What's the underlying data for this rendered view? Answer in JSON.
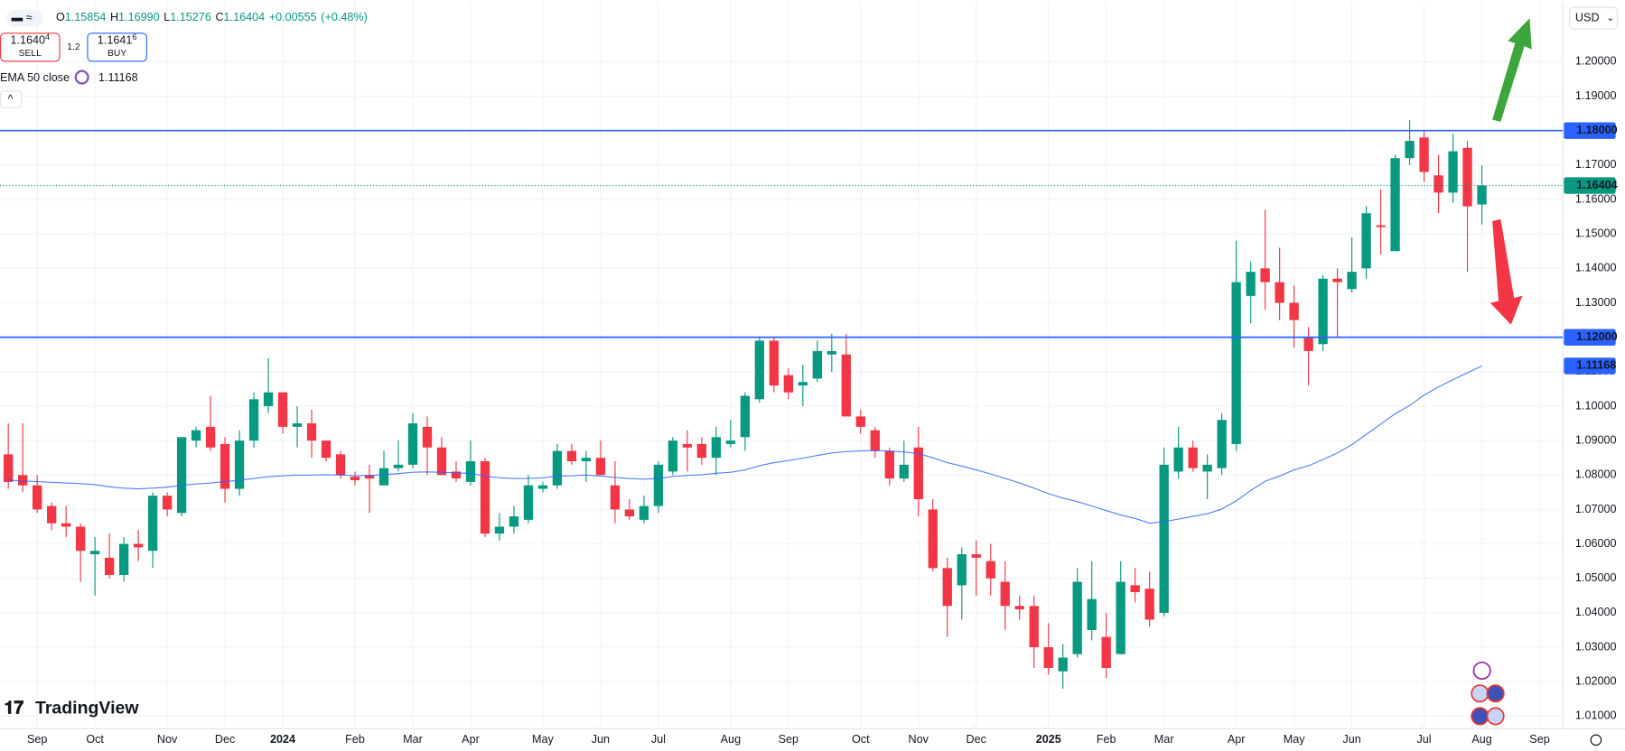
{
  "header": {
    "open_label": "O",
    "open": "1.15854",
    "high_label": "H",
    "high": "1.16990",
    "low_label": "L",
    "low": "1.15276",
    "close_label": "C",
    "close": "1.16404",
    "change": "+0.00555",
    "change_pct": "(+0.48%)",
    "sell_main": "1.1640",
    "sell_sup": "4",
    "sell": "SELL",
    "spread": "1.2",
    "buy_main": "1.1641",
    "buy_sup": "6",
    "buy": "BUY",
    "currency": "USD",
    "brand": "TradingView"
  },
  "chart_data": {
    "type": "candlestick",
    "categories": [
      null,
      null,
      "Sep",
      null,
      null,
      null,
      "Oct",
      null,
      null,
      null,
      null,
      "Nov",
      null,
      null,
      null,
      "Dec",
      null,
      null,
      null,
      "2024",
      null,
      null,
      null,
      null,
      "Feb",
      null,
      null,
      null,
      "Mar",
      null,
      null,
      null,
      "Apr",
      null,
      null,
      null,
      null,
      "May",
      null,
      null,
      null,
      "Jun",
      null,
      null,
      null,
      "Jul",
      null,
      null,
      null,
      null,
      "Aug",
      null,
      null,
      null,
      "Sep",
      null,
      null,
      null,
      null,
      "Oct",
      null,
      null,
      null,
      "Nov",
      null,
      null,
      null,
      "Dec",
      null,
      null,
      null,
      null,
      "2025",
      null,
      null,
      null,
      "Feb",
      null,
      null,
      null,
      "Mar",
      null,
      null,
      null,
      null,
      "Apr",
      null,
      null,
      null,
      "May",
      null,
      null,
      null,
      "Jun",
      null,
      null,
      null,
      null,
      "Jul",
      null,
      null,
      null,
      "Aug",
      null,
      null,
      null,
      "Sep"
    ],
    "open": [
      1.086,
      1.08,
      1.077,
      1.071,
      1.066,
      1.065,
      1.057,
      1.056,
      1.051,
      1.06,
      1.058,
      1.074,
      1.069,
      1.09,
      1.094,
      1.089,
      1.076,
      1.09,
      1.1,
      1.104,
      1.094,
      1.095,
      1.09,
      1.086,
      1.0795,
      1.08,
      1.077,
      1.082,
      1.083,
      1.094,
      1.088,
      1.081,
      1.078,
      1.084,
      1.063,
      1.065,
      1.067,
      1.076,
      1.077,
      1.087,
      1.084,
      1.085,
      1.077,
      1.07,
      1.067,
      1.071,
      1.081,
      1.089,
      1.089,
      1.085,
      1.089,
      1.091,
      1.102,
      1.119,
      1.109,
      1.106,
      1.108,
      1.115,
      1.115,
      1.097,
      1.093,
      1.087,
      1.079,
      1.088,
      1.07,
      1.053,
      1.048,
      1.057,
      1.055,
      1.049,
      1.042,
      1.042,
      1.03,
      1.023,
      1.028,
      1.035,
      1.033,
      1.028,
      1.048,
      1.047,
      1.04,
      1.081,
      1.088,
      1.081,
      1.082,
      1.089,
      1.132,
      1.14,
      1.136,
      1.13,
      1.12,
      1.118,
      1.137,
      1.134,
      1.14,
      1.1525,
      1.145,
      1.172,
      1.178,
      1.167,
      1.162,
      1.175,
      1.15854,
      null,
      null,
      null,
      null
    ],
    "high": [
      1.095,
      1.095,
      1.08,
      1.072,
      1.071,
      1.066,
      1.062,
      1.063,
      1.062,
      1.064,
      1.075,
      1.075,
      1.091,
      1.094,
      1.103,
      1.091,
      1.093,
      1.104,
      1.114,
      1.104,
      1.1,
      1.099,
      1.09,
      1.087,
      1.081,
      1.083,
      1.087,
      1.09,
      1.098,
      1.097,
      1.091,
      1.084,
      1.09,
      1.085,
      1.069,
      1.071,
      1.08,
      1.078,
      1.089,
      1.089,
      1.087,
      1.09,
      1.084,
      1.073,
      1.074,
      1.084,
      1.091,
      1.093,
      1.091,
      1.094,
      1.096,
      1.104,
      1.12,
      1.12,
      1.111,
      1.112,
      1.119,
      1.121,
      1.121,
      1.099,
      1.094,
      1.088,
      1.09,
      1.094,
      1.073,
      1.056,
      1.059,
      1.061,
      1.06,
      1.055,
      1.045,
      1.045,
      1.037,
      1.031,
      1.053,
      1.055,
      1.04,
      1.055,
      1.053,
      1.052,
      1.088,
      1.094,
      1.09,
      1.086,
      1.098,
      1.148,
      1.142,
      1.157,
      1.146,
      1.135,
      1.123,
      1.138,
      1.14,
      1.149,
      1.158,
      1.163,
      1.173,
      1.183,
      1.18,
      1.173,
      1.179,
      1.177,
      1.1699,
      null,
      null,
      null,
      null
    ],
    "low": [
      1.076,
      1.075,
      1.069,
      1.064,
      1.062,
      1.049,
      1.045,
      1.05,
      1.049,
      1.055,
      1.053,
      1.068,
      1.068,
      1.088,
      1.087,
      1.072,
      1.074,
      1.088,
      1.098,
      1.092,
      1.088,
      1.085,
      1.084,
      1.079,
      1.077,
      1.069,
      1.077,
      1.081,
      1.082,
      1.08,
      1.08,
      1.078,
      1.077,
      1.062,
      1.061,
      1.063,
      1.066,
      1.075,
      1.076,
      1.083,
      1.078,
      1.08,
      1.066,
      1.067,
      1.066,
      1.069,
      1.08,
      1.081,
      1.083,
      1.08,
      1.088,
      1.087,
      1.101,
      1.104,
      1.102,
      1.1,
      1.107,
      1.11,
      1.098,
      1.092,
      1.085,
      1.077,
      1.078,
      1.068,
      1.052,
      1.033,
      1.038,
      1.045,
      1.045,
      1.035,
      1.038,
      1.024,
      1.022,
      1.018,
      1.027,
      1.032,
      1.021,
      1.028,
      1.043,
      1.036,
      1.039,
      1.079,
      1.081,
      1.073,
      1.08,
      1.087,
      1.124,
      1.128,
      1.125,
      1.117,
      1.106,
      1.116,
      1.12,
      1.133,
      1.137,
      1.144,
      1.145,
      1.17,
      1.165,
      1.156,
      1.159,
      1.139,
      1.15276,
      null,
      null,
      null,
      null
    ],
    "close": [
      1.078,
      1.077,
      1.07,
      1.066,
      1.065,
      1.058,
      1.058,
      1.051,
      1.06,
      1.059,
      1.074,
      1.07,
      1.091,
      1.093,
      1.088,
      1.076,
      1.09,
      1.102,
      1.104,
      1.094,
      1.095,
      1.09,
      1.085,
      1.08,
      1.0785,
      1.079,
      1.082,
      1.083,
      1.095,
      1.088,
      1.08,
      1.079,
      1.084,
      1.063,
      1.065,
      1.068,
      1.077,
      1.077,
      1.087,
      1.084,
      1.085,
      1.08,
      1.07,
      1.068,
      1.071,
      1.083,
      1.09,
      1.088,
      1.085,
      1.091,
      1.09,
      1.103,
      1.119,
      1.106,
      1.104,
      1.107,
      1.116,
      1.116,
      1.097,
      1.094,
      1.087,
      1.079,
      1.083,
      1.073,
      1.053,
      1.042,
      1.057,
      1.056,
      1.05,
      1.042,
      1.041,
      1.03,
      1.024,
      1.027,
      1.049,
      1.044,
      1.024,
      1.049,
      1.046,
      1.038,
      1.083,
      1.088,
      1.082,
      1.083,
      1.096,
      1.136,
      1.139,
      1.136,
      1.13,
      1.125,
      1.116,
      1.137,
      1.136,
      1.139,
      1.156,
      1.152,
      1.172,
      1.177,
      1.168,
      1.162,
      1.174,
      1.158,
      1.16404,
      null,
      null,
      null,
      null
    ],
    "up_color": "#089981",
    "down_color": "#f23645",
    "ema": {
      "label": "EMA 50 close",
      "value_label": "1.11168",
      "color": "#2962ff",
      "values": [
        1.0785,
        1.0783,
        1.0781,
        1.0779,
        1.0777,
        1.0775,
        1.0772,
        1.0766,
        1.0762,
        1.076,
        1.0762,
        1.0765,
        1.077,
        1.0774,
        1.0777,
        1.0781,
        1.0785,
        1.079,
        1.0795,
        1.0798,
        1.08,
        1.08,
        1.0801,
        1.08,
        1.0798,
        1.0799,
        1.0801,
        1.0804,
        1.0808,
        1.0809,
        1.0808,
        1.0806,
        1.0805,
        1.0797,
        1.0792,
        1.079,
        1.079,
        1.0792,
        1.0797,
        1.0798,
        1.08,
        1.0797,
        1.0793,
        1.079,
        1.0788,
        1.079,
        1.0796,
        1.0799,
        1.0801,
        1.0805,
        1.0808,
        1.0815,
        1.0827,
        1.0836,
        1.0842,
        1.0849,
        1.0857,
        1.0864,
        1.0868,
        1.087,
        1.0871,
        1.087,
        1.0867,
        1.0862,
        1.085,
        1.0836,
        1.0826,
        1.0815,
        1.0803,
        1.079,
        1.0777,
        1.0762,
        1.0746,
        1.0733,
        1.0723,
        1.071,
        1.0697,
        1.0684,
        1.0674,
        1.066,
        1.0665,
        1.0672,
        1.068,
        1.0688,
        1.0701,
        1.0725,
        1.0755,
        1.0782,
        1.0797,
        1.0815,
        1.0827,
        1.0845,
        1.0864,
        1.0888,
        1.0918,
        1.0948,
        1.0978,
        1.1002,
        1.1032,
        1.1056,
        1.1077,
        1.1097,
        1.11168,
        null,
        null,
        null,
        null
      ]
    },
    "levels": [
      {
        "value": 1.18,
        "label": "1.18000"
      },
      {
        "value": 1.12,
        "label": "1.12000"
      }
    ],
    "level_color": "#2962ff",
    "price_line": {
      "value": 1.16404,
      "label": "1.16404",
      "color": "#089981"
    },
    "ylim": [
      1.00637,
      1.21744
    ],
    "yticks": [
      {
        "value": 1.01,
        "label": "1.01000"
      },
      {
        "value": 1.02,
        "label": "1.02000"
      },
      {
        "value": 1.03,
        "label": "1.03000"
      },
      {
        "value": 1.04,
        "label": "1.04000"
      },
      {
        "value": 1.05,
        "label": "1.05000"
      },
      {
        "value": 1.06,
        "label": "1.06000"
      },
      {
        "value": 1.07,
        "label": "1.07000"
      },
      {
        "value": 1.08,
        "label": "1.08000"
      },
      {
        "value": 1.09,
        "label": "1.09000"
      },
      {
        "value": 1.1,
        "label": "1.10000"
      },
      {
        "value": 1.11,
        "label": "1.11000"
      },
      {
        "value": 1.12,
        "label": "1.12000"
      },
      {
        "value": 1.13,
        "label": "1.13000"
      },
      {
        "value": 1.14,
        "label": "1.14000"
      },
      {
        "value": 1.15,
        "label": "1.15000"
      },
      {
        "value": 1.16,
        "label": "1.16000"
      },
      {
        "value": 1.17,
        "label": "1.17000"
      },
      {
        "value": 1.18,
        "label": "1.18000"
      },
      {
        "value": 1.19,
        "label": "1.19000"
      },
      {
        "value": 1.2,
        "label": "1.20000"
      }
    ],
    "grid": true
  }
}
